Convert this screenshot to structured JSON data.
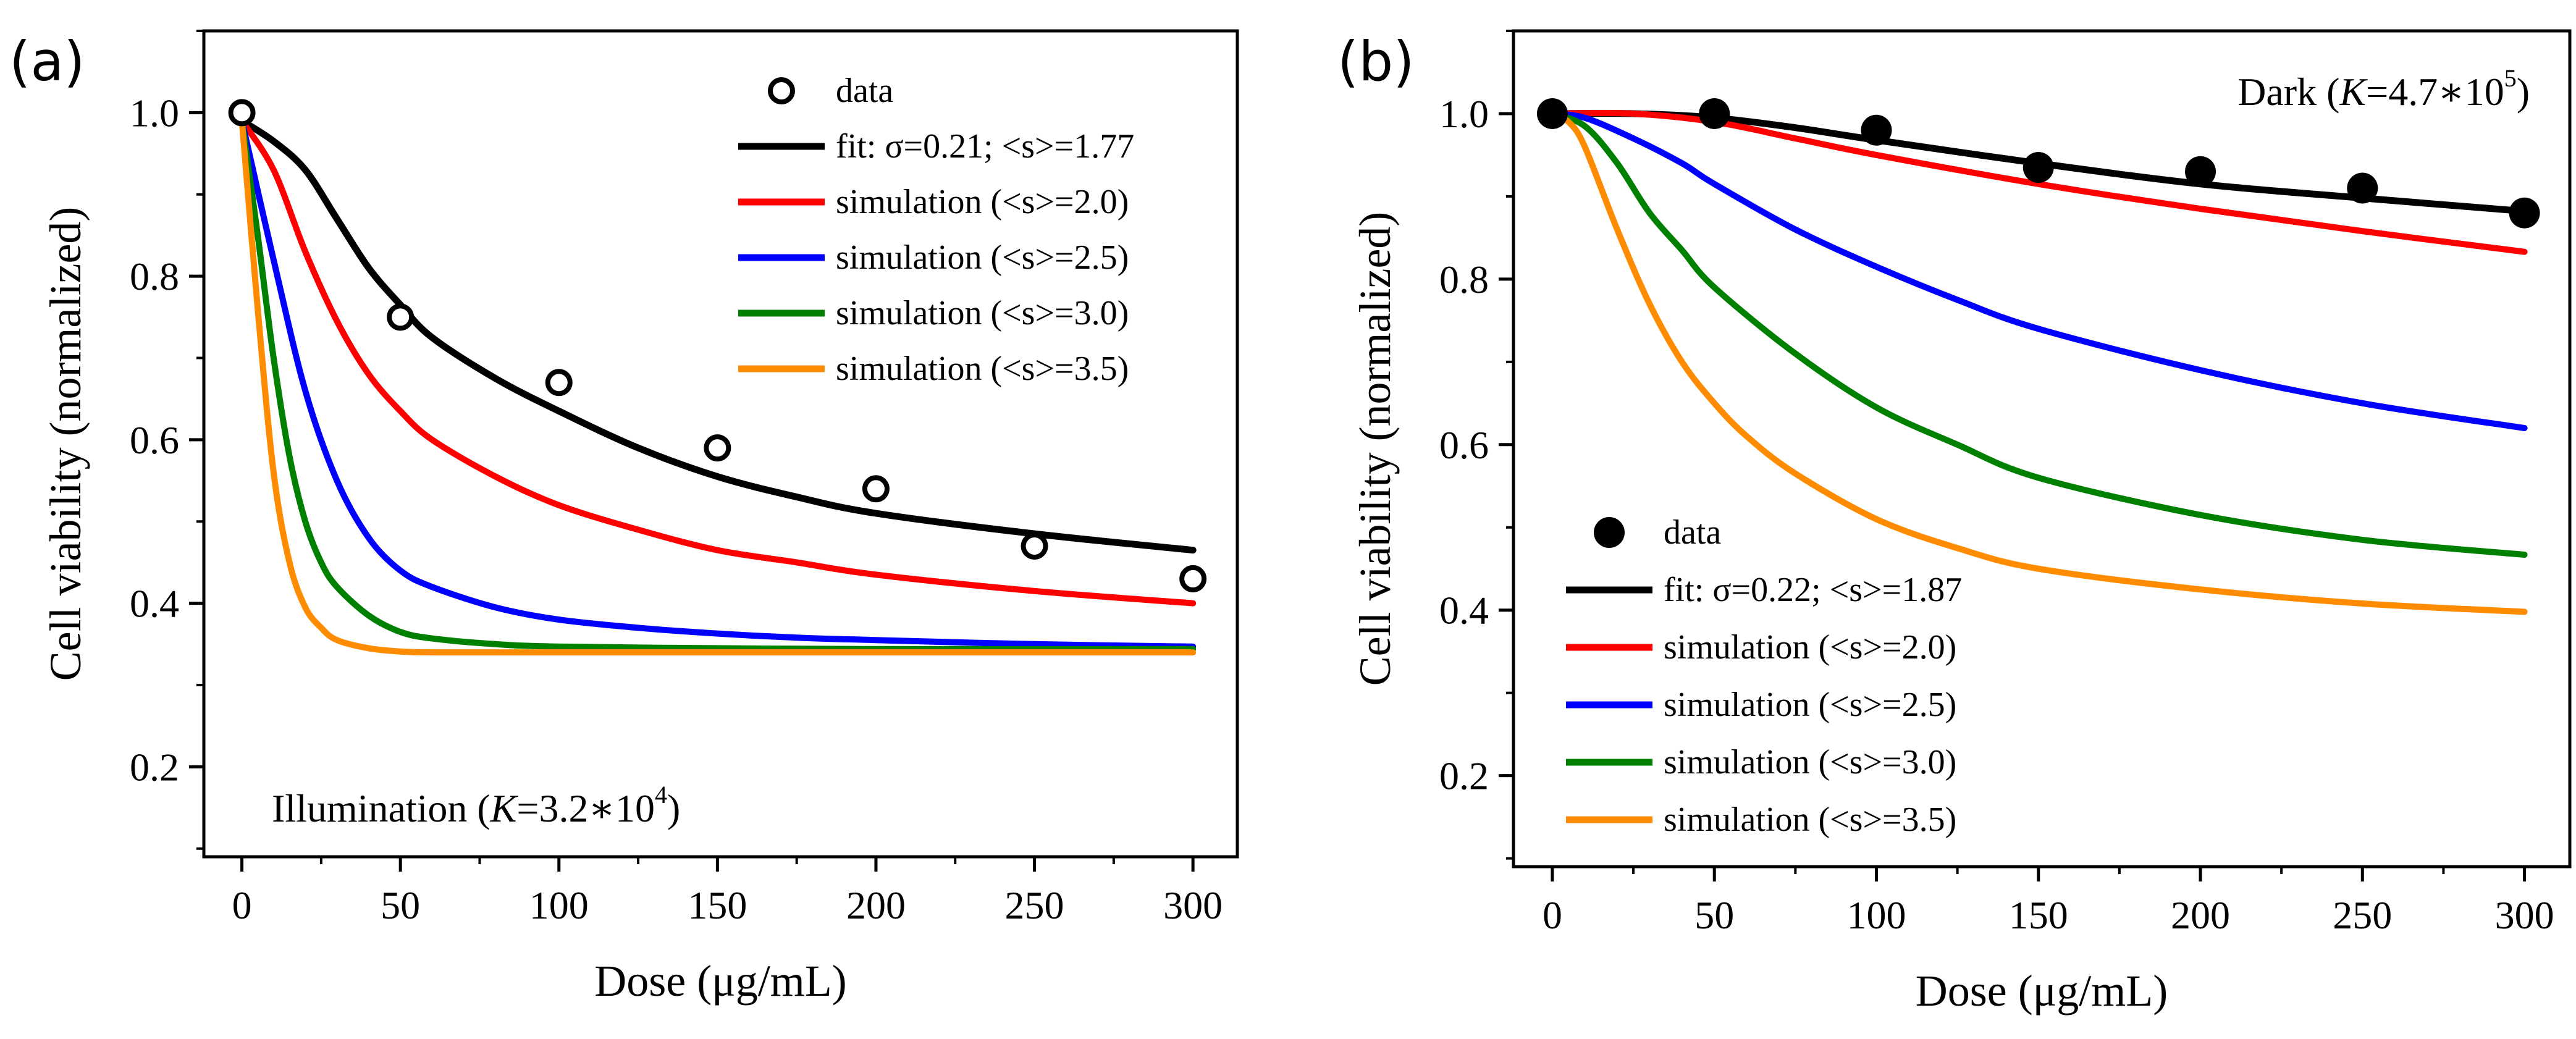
{
  "chart_data": [
    {
      "type": "line",
      "panel_label": "(a)",
      "annotation": {
        "prefix": "Illumination (",
        "var": "K",
        "mid": "=3.2∗10",
        "sup": "4",
        "suffix": ")"
      },
      "xlabel": "Dose (μg/mL)",
      "ylabel": "Cell viability (normalized)",
      "xlim": [
        -12,
        314
      ],
      "ylim": [
        0.09,
        1.1
      ],
      "xticks": [
        0,
        50,
        100,
        150,
        200,
        250,
        300
      ],
      "yticks": [
        0.2,
        0.4,
        0.6,
        0.8,
        1.0
      ],
      "ytick_labels": [
        "0.2",
        "0.4",
        "0.6",
        "0.8",
        "1.0"
      ],
      "legend_position": "top-right",
      "grid": false,
      "data_points": {
        "name": "data",
        "marker": "open-circle",
        "x": [
          0,
          50,
          100,
          150,
          200,
          250,
          300
        ],
        "y": [
          1.0,
          0.75,
          0.67,
          0.59,
          0.54,
          0.47,
          0.43
        ]
      },
      "series": [
        {
          "name": "fit: σ=0.21; <s>=1.77",
          "color": "#000000",
          "x": [
            0,
            10,
            20,
            30,
            40,
            50,
            60,
            80,
            100,
            125,
            150,
            175,
            200,
            250,
            300
          ],
          "y": [
            0.99,
            0.965,
            0.93,
            0.87,
            0.81,
            0.765,
            0.725,
            0.675,
            0.635,
            0.59,
            0.555,
            0.53,
            0.51,
            0.485,
            0.465
          ]
        },
        {
          "name": "simulation (<s>=2.0)",
          "color": "#ff0000",
          "x": [
            0,
            10,
            20,
            30,
            40,
            50,
            60,
            80,
            100,
            125,
            150,
            175,
            200,
            250,
            300
          ],
          "y": [
            0.99,
            0.93,
            0.83,
            0.745,
            0.68,
            0.635,
            0.6,
            0.555,
            0.52,
            0.49,
            0.465,
            0.45,
            0.435,
            0.415,
            0.4
          ]
        },
        {
          "name": "simulation (<s>=2.5)",
          "color": "#0000ff",
          "x": [
            0,
            10,
            20,
            30,
            40,
            50,
            60,
            80,
            100,
            125,
            150,
            175,
            200,
            250,
            300
          ],
          "y": [
            0.99,
            0.82,
            0.66,
            0.55,
            0.48,
            0.44,
            0.42,
            0.395,
            0.38,
            0.37,
            0.363,
            0.358,
            0.355,
            0.35,
            0.347
          ]
        },
        {
          "name": "simulation (<s>=3.0)",
          "color": "#008000",
          "x": [
            0,
            5,
            10,
            15,
            20,
            25,
            30,
            40,
            50,
            60,
            80,
            100,
            150,
            200,
            300
          ],
          "y": [
            0.99,
            0.85,
            0.7,
            0.58,
            0.5,
            0.45,
            0.42,
            0.385,
            0.365,
            0.357,
            0.35,
            0.347,
            0.345,
            0.344,
            0.344
          ]
        },
        {
          "name": "simulation (<s>=3.5)",
          "color": "#ff8c00",
          "x": [
            0,
            5,
            10,
            15,
            20,
            25,
            30,
            40,
            50,
            60,
            80,
            100,
            150,
            200,
            300
          ],
          "y": [
            0.99,
            0.76,
            0.56,
            0.45,
            0.395,
            0.37,
            0.355,
            0.345,
            0.341,
            0.34,
            0.34,
            0.34,
            0.34,
            0.34,
            0.34
          ]
        }
      ]
    },
    {
      "type": "line",
      "panel_label": "(b)",
      "annotation": {
        "prefix": "Dark (",
        "var": "K",
        "mid": "=4.7∗10",
        "sup": "5",
        "suffix": ")"
      },
      "xlabel": "Dose (μg/mL)",
      "ylabel": "Cell viability (normalized)",
      "xlim": [
        -12,
        314
      ],
      "ylim": [
        0.09,
        1.1
      ],
      "xticks": [
        0,
        50,
        100,
        150,
        200,
        250,
        300
      ],
      "yticks": [
        0.2,
        0.4,
        0.6,
        0.8,
        1.0
      ],
      "ytick_labels": [
        "0.2",
        "0.4",
        "0.6",
        "0.8",
        "1.0"
      ],
      "legend_position": "bottom-left",
      "grid": false,
      "data_points": {
        "name": "data",
        "marker": "filled-circle",
        "x": [
          0,
          50,
          100,
          150,
          200,
          250,
          300
        ],
        "y": [
          1.0,
          1.0,
          0.98,
          0.935,
          0.93,
          0.91,
          0.88
        ]
      },
      "series": [
        {
          "name": "fit: σ=0.22; <s>=1.87",
          "color": "#000000",
          "x": [
            0,
            25,
            50,
            75,
            100,
            150,
            200,
            250,
            300
          ],
          "y": [
            1.0,
            1.0,
            0.995,
            0.983,
            0.968,
            0.94,
            0.915,
            0.898,
            0.882
          ]
        },
        {
          "name": "simulation (<s>=2.0)",
          "color": "#ff0000",
          "x": [
            0,
            25,
            50,
            75,
            100,
            150,
            200,
            250,
            300
          ],
          "y": [
            1.0,
            1.0,
            0.99,
            0.97,
            0.95,
            0.915,
            0.885,
            0.858,
            0.833
          ]
        },
        {
          "name": "simulation (<s>=2.5)",
          "color": "#0000ff",
          "x": [
            0,
            10,
            25,
            40,
            50,
            75,
            100,
            125,
            150,
            200,
            250,
            300
          ],
          "y": [
            1.0,
            0.995,
            0.97,
            0.94,
            0.915,
            0.86,
            0.815,
            0.775,
            0.74,
            0.69,
            0.65,
            0.62
          ]
        },
        {
          "name": "simulation (<s>=3.0)",
          "color": "#008000",
          "x": [
            0,
            10,
            20,
            30,
            40,
            50,
            75,
            100,
            125,
            150,
            200,
            250,
            300
          ],
          "y": [
            1.0,
            0.985,
            0.94,
            0.88,
            0.835,
            0.79,
            0.71,
            0.645,
            0.6,
            0.56,
            0.515,
            0.485,
            0.467
          ]
        },
        {
          "name": "simulation (<s>=3.5)",
          "color": "#ff8c00",
          "x": [
            0,
            5,
            10,
            20,
            30,
            40,
            50,
            60,
            75,
            100,
            125,
            150,
            200,
            250,
            300
          ],
          "y": [
            1.0,
            0.99,
            0.96,
            0.86,
            0.77,
            0.7,
            0.65,
            0.61,
            0.565,
            0.51,
            0.475,
            0.45,
            0.425,
            0.408,
            0.398
          ]
        }
      ]
    }
  ]
}
